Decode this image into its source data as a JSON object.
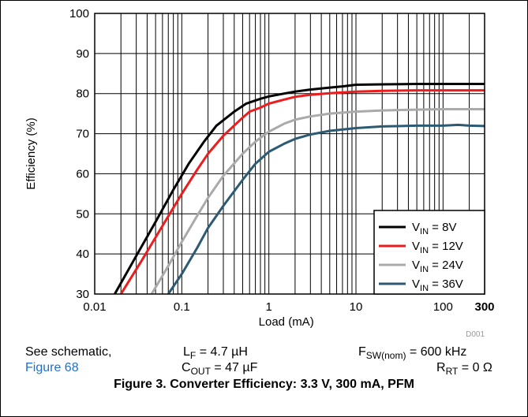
{
  "chart_data": {
    "type": "line",
    "ylabel": "Efficiency (%)",
    "xlabel": "Load (mA)",
    "x_scale": "log",
    "xlim": [
      0.01,
      300
    ],
    "ylim": [
      30,
      100
    ],
    "x_ticks": [
      {
        "value": 0.01,
        "label": "0.01"
      },
      {
        "value": 0.1,
        "label": "0.1"
      },
      {
        "value": 1,
        "label": "1"
      },
      {
        "value": 10,
        "label": "10"
      },
      {
        "value": 100,
        "label": "100"
      },
      {
        "value": 300,
        "label": "300"
      }
    ],
    "y_ticks": [
      30,
      40,
      50,
      60,
      70,
      80,
      90,
      100
    ],
    "grid": true,
    "legend_position": "bottom-right",
    "figure_id": "D001",
    "series": [
      {
        "name": "V_IN = 8V",
        "name_main": "V",
        "name_sub": "IN",
        "name_rest": " = 8V",
        "color": "#000000",
        "x": [
          0.017,
          0.03,
          0.05,
          0.08,
          0.12,
          0.18,
          0.25,
          0.4,
          0.55,
          0.8,
          1,
          1.5,
          2,
          3,
          5,
          7,
          10,
          20,
          50,
          100,
          200,
          300
        ],
        "y": [
          30,
          39.5,
          48,
          56,
          62.5,
          68,
          72,
          75.5,
          77.5,
          78.7,
          79.3,
          80,
          80.5,
          81,
          81.5,
          81.8,
          82.2,
          82.3,
          82.4,
          82.4,
          82.4,
          82.4
        ]
      },
      {
        "name": "V_IN = 12V",
        "name_main": "V",
        "name_sub": "IN",
        "name_rest": " = 12V",
        "color": "#ee1c1c",
        "x": [
          0.02,
          0.035,
          0.06,
          0.1,
          0.15,
          0.2,
          0.3,
          0.5,
          0.6,
          0.8,
          1,
          1.5,
          2,
          3,
          5,
          10,
          20,
          50,
          100,
          200,
          300
        ],
        "y": [
          30,
          38.5,
          47,
          55,
          61,
          65,
          69.5,
          74,
          75.5,
          76.5,
          77.5,
          78.5,
          79.2,
          79.7,
          80.1,
          80.5,
          80.7,
          80.8,
          80.8,
          80.8,
          80.8
        ]
      },
      {
        "name": "V_IN = 24V",
        "name_main": "V",
        "name_sub": "IN",
        "name_rest": " = 24V",
        "color": "#aaaaaa",
        "x": [
          0.045,
          0.07,
          0.1,
          0.15,
          0.2,
          0.3,
          0.5,
          0.7,
          1,
          1.5,
          2,
          3,
          5,
          10,
          20,
          50,
          100,
          200,
          300
        ],
        "y": [
          30,
          37,
          43,
          49.5,
          54,
          59.5,
          65,
          68,
          70.5,
          72.5,
          73.5,
          74.3,
          75,
          75.5,
          75.8,
          76,
          76.1,
          76.1,
          76.1
        ]
      },
      {
        "name": "V_IN = 36V",
        "name_main": "V",
        "name_sub": "IN",
        "name_rest": " = 36V",
        "color": "#2c5a73",
        "x": [
          0.07,
          0.1,
          0.15,
          0.2,
          0.3,
          0.5,
          0.7,
          1,
          1.5,
          2,
          3,
          5,
          10,
          20,
          50,
          100,
          150,
          200,
          300
        ],
        "y": [
          30,
          35,
          41.5,
          46.5,
          52,
          58.5,
          62.5,
          65.5,
          67.5,
          68.7,
          69.8,
          70.7,
          71.4,
          71.8,
          72,
          72,
          72.2,
          72,
          71.9
        ]
      }
    ]
  },
  "notes": {
    "see_schematic": "See schematic,",
    "figure_link": "Figure 68",
    "lf_main": "L",
    "lf_sub": "F",
    "lf_rest": " = 4.7 µH",
    "cout_main": "C",
    "cout_sub": "OUT",
    "cout_rest": " = 47 µF",
    "fsw_main": "F",
    "fsw_sub": "SW(nom)",
    "fsw_rest": " = 600 kHz",
    "rrt_main": "R",
    "rrt_sub": "RT",
    "rrt_rest": " = 0 Ω"
  },
  "caption": "Figure 3. Converter Efficiency: 3.3 V, 300 mA, PFM"
}
